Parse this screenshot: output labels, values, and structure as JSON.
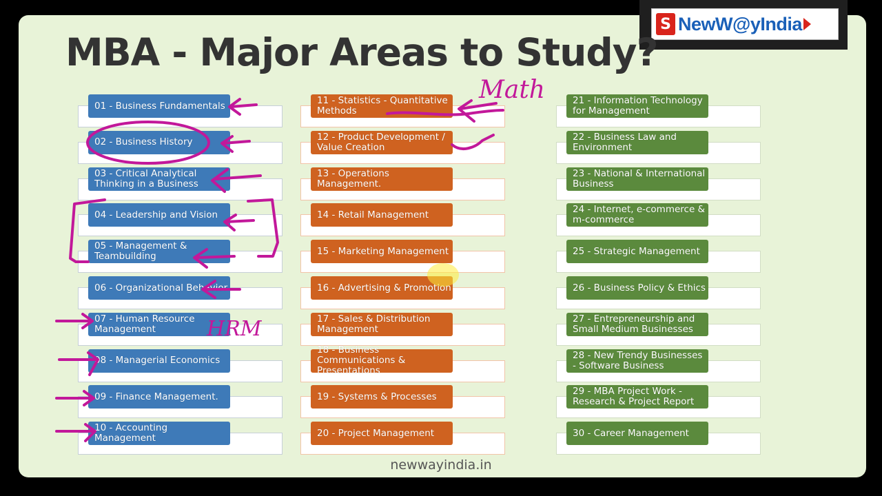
{
  "title": "MBA - Major Areas to Study?",
  "brand": {
    "logo_text": "NewW@yIndia",
    "logo_color": "#1a60b8",
    "accent": "#d9241c"
  },
  "footer": "newwayindia.in",
  "columns": [
    {
      "color": "#3e7ab8",
      "items": [
        "01 - Business Fundamentals",
        "02 - Business History",
        "03 - Critical Analytical Thinking in a Business",
        "04 - Leadership and Vision",
        "05 - Management & Teambuilding",
        "06 - Organizational Behavior",
        "07 - Human Resource Management",
        "08 - Managerial Economics",
        "09 - Finance Management.",
        "10 - Accounting Management"
      ]
    },
    {
      "color": "#cf6220",
      "items": [
        "11 - Statistics - Quantitative Methods",
        "12 - Product Development / Value Creation",
        "13 - Operations Management.",
        "14 - Retail Management",
        "15 - Marketing Management",
        "16 - Advertising & Promotion",
        "17 - Sales & Distribution Management",
        "18 - Business Communications & Presentations",
        "19 - Systems & Processes",
        "20 - Project Management"
      ]
    },
    {
      "color": "#5b8a3d",
      "items": [
        "21 - Information Technology for Management",
        "22 - Business Law and Environment",
        "23 - National & International Business",
        "24 - Internet, e-commerce & m-commerce",
        "25 - Strategic Management",
        "26 - Business Policy & Ethics",
        "27 - Entrepreneurship and Small Medium Businesses",
        "28 - New Trendy Businesses - Software Business",
        "29 - MBA Project Work - Research & Project Report",
        "30 - Career Management"
      ]
    }
  ],
  "annotations": {
    "math": "Math",
    "hrm": "HRM",
    "ink_color": "#c2189a"
  }
}
